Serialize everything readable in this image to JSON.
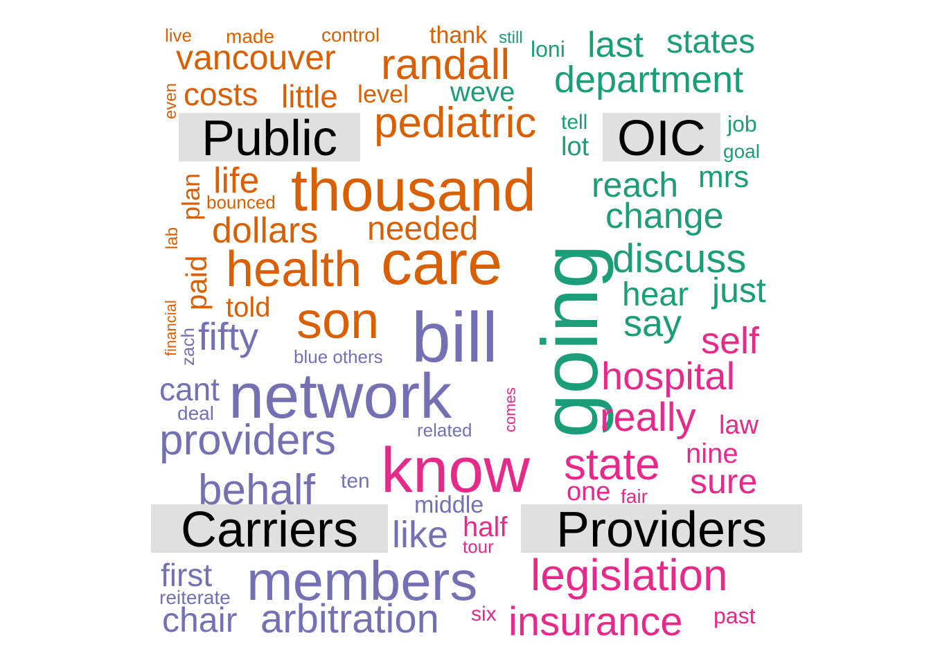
{
  "chart_data": {
    "type": "comparison-word-cloud",
    "colors": {
      "Public": "#D95F02",
      "OIC": "#1B9E77",
      "Carriers": "#7570B3",
      "Providers": "#E7298A",
      "label_background": "#E0E0E0",
      "label_text": "#000000"
    },
    "groups": [
      {
        "name": "Public",
        "words": [
          "live",
          "made",
          "control",
          "thank",
          "vancouver",
          "randall",
          "even",
          "costs",
          "little",
          "level",
          "pediatric",
          "thousand",
          "life",
          "plan",
          "bounced",
          "dollars",
          "needed",
          "lab",
          "health",
          "care",
          "paid",
          "financial",
          "told",
          "son"
        ]
      },
      {
        "name": "OIC",
        "words": [
          "still",
          "loni",
          "last",
          "states",
          "weve",
          "department",
          "tell",
          "lot",
          "job",
          "goal",
          "reach",
          "mrs",
          "change",
          "going",
          "discuss",
          "hear",
          "just",
          "say"
        ]
      },
      {
        "name": "Carriers",
        "words": [
          "zach",
          "fifty",
          "bill",
          "blue others",
          "cant",
          "network",
          "deal",
          "providers",
          "related",
          "behalf",
          "ten",
          "middle",
          "like",
          "first",
          "members",
          "reiterate",
          "chair",
          "arbitration"
        ]
      },
      {
        "name": "Providers",
        "words": [
          "self",
          "hospital",
          "comes",
          "really",
          "law",
          "know",
          "state",
          "nine",
          "sure",
          "one",
          "fair",
          "half",
          "tour",
          "legislation",
          "six",
          "past",
          "insurance"
        ]
      }
    ]
  }
}
